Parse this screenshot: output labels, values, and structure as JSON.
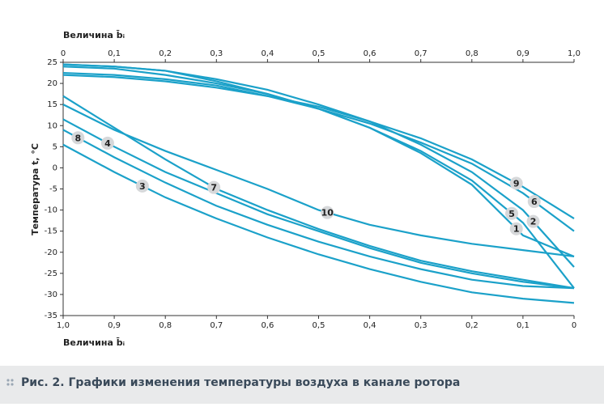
{
  "chart_data": {
    "type": "line",
    "title": "Рис. 2. Графики изменения температуры воздуха в канале ротора",
    "x_label_top": "Величина b̄ᵢ",
    "x_label_bottom": "Величина b̄ᵢ",
    "y_label": "Температура t, °C",
    "x": [
      0,
      0.1,
      0.2,
      0.3,
      0.4,
      0.5,
      0.6,
      0.7,
      0.8,
      0.9,
      1.0
    ],
    "xlim": [
      0,
      1.0
    ],
    "xticks": [
      0,
      {
        "value": 0.1,
        "label": "0,1"
      },
      {
        "value": 0.2,
        "label": "0,2"
      },
      {
        "value": 0.3,
        "label": "0,3"
      },
      {
        "value": 0.4,
        "label": "0,4"
      },
      {
        "value": 0.5,
        "label": "0,5"
      },
      {
        "value": 0.6,
        "label": "0,6"
      },
      {
        "value": 0.7,
        "label": "0,7"
      },
      {
        "value": 0.8,
        "label": "0,8"
      },
      {
        "value": 0.9,
        "label": "0,9"
      },
      {
        "value": 1.0,
        "label": "1,0"
      }
    ],
    "x2lim": [
      1.0,
      0
    ],
    "x2ticks": [
      {
        "value": 1.0,
        "label": "1,0"
      },
      {
        "value": 0.9,
        "label": "0,9"
      },
      {
        "value": 0.8,
        "label": "0,8"
      },
      {
        "value": 0.7,
        "label": "0,7"
      },
      {
        "value": 0.6,
        "label": "0,6"
      },
      {
        "value": 0.5,
        "label": "0,5"
      },
      {
        "value": 0.4,
        "label": "0,4"
      },
      {
        "value": 0.3,
        "label": "0,3"
      },
      {
        "value": 0.2,
        "label": "0,2"
      },
      {
        "value": 0.1,
        "label": "0,1"
      },
      0
    ],
    "ylim": [
      -35,
      25
    ],
    "yticks": [
      25,
      20,
      15,
      10,
      5,
      0,
      -5,
      -10,
      -15,
      -20,
      -25,
      -30,
      -35
    ],
    "series": [
      {
        "name": "1",
        "color": "#1ba1c9",
        "values": [
          24.5,
          24,
          23,
          20.5,
          17.5,
          14,
          9.5,
          3.5,
          -4,
          -16,
          -21
        ]
      },
      {
        "name": "2",
        "color": "#1ba1c9",
        "values": [
          24.5,
          24,
          23,
          21,
          18.5,
          15,
          11,
          5.5,
          -1,
          -10,
          -23.5
        ]
      },
      {
        "name": "3",
        "color": "#1ba1c9",
        "values": [
          5.5,
          -1,
          -7,
          -12,
          -16.5,
          -20.5,
          -24,
          -27,
          -29.5,
          -31,
          -32
        ]
      },
      {
        "name": "4",
        "color": "#1ba1c9",
        "values": [
          11.5,
          5,
          -1,
          -6,
          -11,
          -15,
          -19,
          -22.5,
          -25,
          -27,
          -28.5
        ]
      },
      {
        "name": "5",
        "color": "#1ba1c9",
        "values": [
          24,
          23.5,
          22,
          20,
          17.5,
          14,
          9.5,
          4,
          -3,
          -13,
          -28.5
        ]
      },
      {
        "name": "6",
        "color": "#1ba1c9",
        "values": [
          22.5,
          22,
          21,
          19.5,
          17,
          14,
          10.5,
          6,
          1,
          -6,
          -15
        ]
      },
      {
        "name": "7",
        "color": "#1ba1c9",
        "values": [
          17,
          9.5,
          2,
          -5,
          -10,
          -14.5,
          -18.5,
          -22,
          -24.5,
          -26.5,
          -28.5
        ]
      },
      {
        "name": "8",
        "color": "#1ba1c9",
        "values": [
          9,
          2.5,
          -3.5,
          -9,
          -13.5,
          -17.5,
          -21,
          -24,
          -26.5,
          -28,
          -28.5
        ]
      },
      {
        "name": "9",
        "color": "#1ba1c9",
        "values": [
          22,
          21.5,
          20.5,
          19,
          17,
          14.5,
          11,
          7,
          2,
          -4.5,
          -12
        ]
      },
      {
        "name": "10",
        "color": "#1ba1c9",
        "values": [
          15,
          9,
          4,
          -0.5,
          -5,
          -10,
          -13.5,
          -16,
          -18,
          -19.5,
          -21
        ]
      }
    ]
  }
}
